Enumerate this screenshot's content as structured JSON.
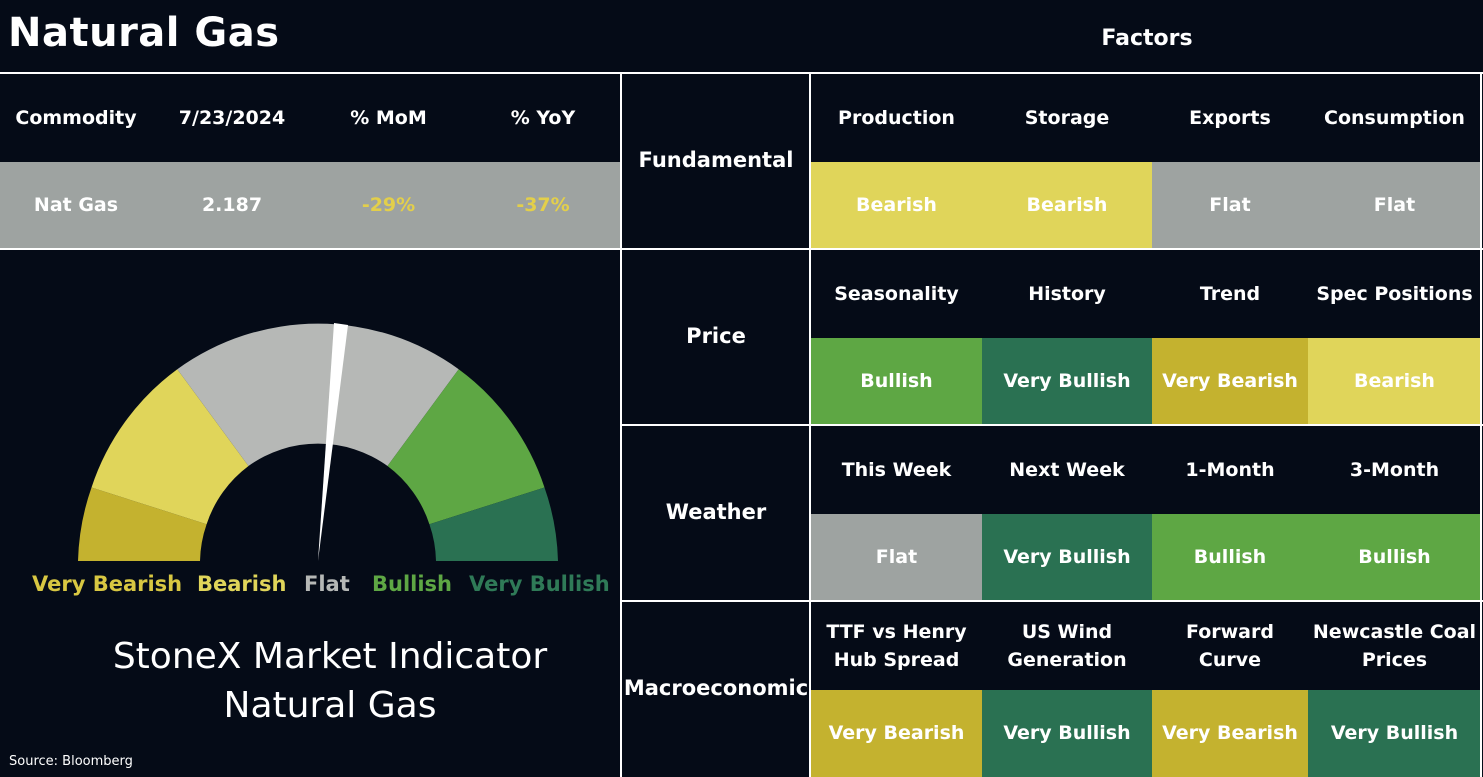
{
  "title": "Natural Gas",
  "factors_title": "Factors",
  "colors": {
    "background": "#050b17",
    "very_bearish": "#c4b22f",
    "bearish": "#e0d55a",
    "flat": "#9ea3a1",
    "bullish": "#5ea744",
    "very_bullish": "#2a7152",
    "negative_text": "#e3cf4a"
  },
  "commodity_table": {
    "headers": [
      "Commodity",
      "7/23/2024",
      "% MoM",
      "% YoY"
    ],
    "row": [
      "Nat Gas",
      "2.187",
      "-29%",
      "-37%"
    ]
  },
  "gauge": {
    "labels": [
      "Very Bearish",
      "Bearish",
      "Flat",
      "Bullish",
      "Very Bullish"
    ],
    "needle_value": "Flat"
  },
  "indicator_title": [
    "StoneX Market Indicator",
    "Natural Gas"
  ],
  "source": "Source: Bloomberg",
  "factors": [
    {
      "category": "Fundamental",
      "headers": [
        "Production",
        "Storage",
        "Exports",
        "Consumption"
      ],
      "values": [
        "Bearish",
        "Bearish",
        "Flat",
        "Flat"
      ]
    },
    {
      "category": "Price",
      "headers": [
        "Seasonality",
        "History",
        "Trend",
        "Spec Positions"
      ],
      "values": [
        "Bullish",
        "Very Bullish",
        "Very Bearish",
        "Bearish"
      ]
    },
    {
      "category": "Weather",
      "headers": [
        "This Week",
        "Next Week",
        "1-Month",
        "3-Month"
      ],
      "values": [
        "Flat",
        "Very Bullish",
        "Bullish",
        "Bullish"
      ]
    },
    {
      "category": "Macroeconomic",
      "headers": [
        "TTF vs Henry\nHub Spread",
        "US Wind\nGeneration",
        "Forward\nCurve",
        "Newcastle Coal\nPrices"
      ],
      "values": [
        "Very Bearish",
        "Very Bullish",
        "Very Bearish",
        "Very Bullish"
      ]
    }
  ]
}
